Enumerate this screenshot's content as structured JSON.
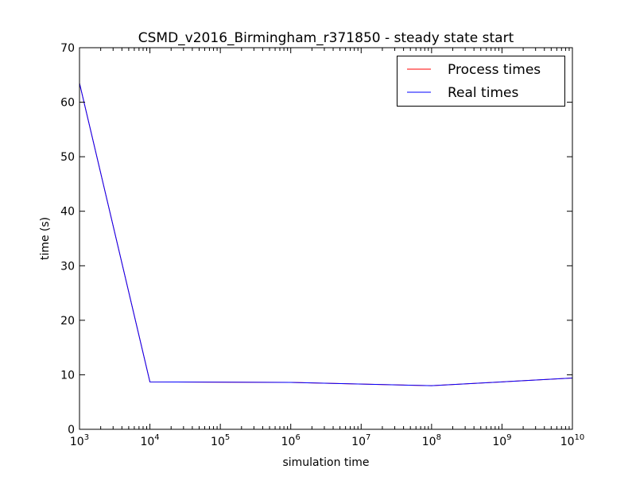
{
  "chart_data": {
    "type": "line",
    "title": "CSMD_v2016_Birmingham_r371850 - steady state start",
    "xlabel": "simulation time",
    "ylabel": "time (s)",
    "xscale": "log",
    "xlim": [
      1000,
      10000000000
    ],
    "ylim": [
      0,
      70
    ],
    "x_ticks": [
      {
        "base": "10",
        "exp": "3",
        "value": 1000
      },
      {
        "base": "10",
        "exp": "4",
        "value": 10000
      },
      {
        "base": "10",
        "exp": "5",
        "value": 100000
      },
      {
        "base": "10",
        "exp": "6",
        "value": 1000000
      },
      {
        "base": "10",
        "exp": "7",
        "value": 10000000
      },
      {
        "base": "10",
        "exp": "8",
        "value": 100000000
      },
      {
        "base": "10",
        "exp": "9",
        "value": 1000000000
      },
      {
        "base": "10",
        "exp": "10",
        "value": 10000000000
      }
    ],
    "y_ticks": [
      "0",
      "10",
      "20",
      "30",
      "40",
      "50",
      "60",
      "70"
    ],
    "grid": false,
    "legend": "top-right",
    "series": [
      {
        "name": "Process times",
        "color": "#ff0000",
        "x": [
          1000,
          10000,
          1000000,
          100000000,
          10000000000
        ],
        "y": [
          63.5,
          8.7,
          8.6,
          8.0,
          9.4
        ]
      },
      {
        "name": "Real times",
        "color": "#0000ff",
        "x": [
          1000,
          10000,
          1000000,
          100000000,
          10000000000
        ],
        "y": [
          63.5,
          8.7,
          8.6,
          8.0,
          9.4
        ]
      }
    ]
  }
}
